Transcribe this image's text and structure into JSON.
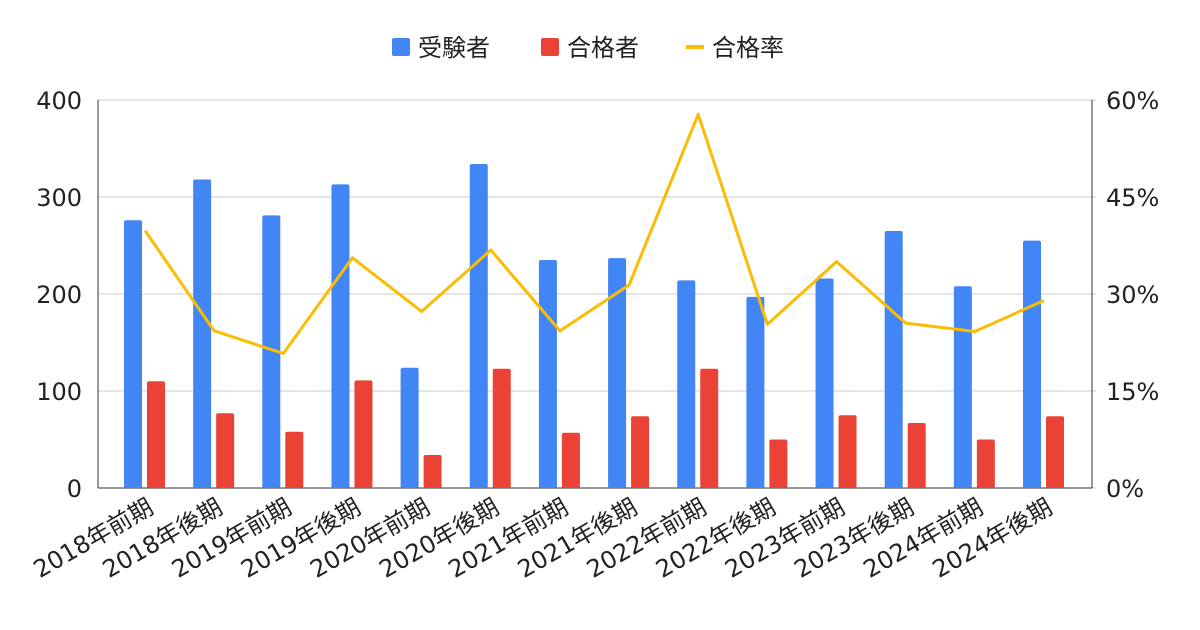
{
  "chart_data": {
    "type": "bar_line",
    "categories": [
      "2018年前期",
      "2018年後期",
      "2019年前期",
      "2019年後期",
      "2020年前期",
      "2020年後期",
      "2021年前期",
      "2021年後期",
      "2022年前期",
      "2022年後期",
      "2023年前期",
      "2023年後期",
      "2024年前期",
      "2024年後期"
    ],
    "series": [
      {
        "name": "受験者",
        "type": "bar",
        "color": "#4285f4",
        "values": [
          276,
          318,
          281,
          313,
          124,
          334,
          235,
          237,
          214,
          197,
          216,
          265,
          208,
          255
        ]
      },
      {
        "name": "合格者",
        "type": "bar",
        "color": "#ea4335",
        "values": [
          110,
          77,
          58,
          111,
          34,
          123,
          57,
          74,
          123,
          50,
          75,
          67,
          50,
          74
        ]
      },
      {
        "name": "合格率",
        "type": "line",
        "axis": "y2",
        "color": "#fbbc04",
        "values": [
          39.8,
          24.3,
          20.8,
          35.6,
          27.3,
          36.8,
          24.3,
          31.4,
          57.8,
          25.3,
          35.0,
          25.5,
          24.2,
          29.0
        ]
      }
    ],
    "ylim": [
      0,
      400
    ],
    "yticks": [
      0,
      100,
      200,
      300,
      400
    ],
    "y2lim": [
      0,
      60
    ],
    "y2ticks": [
      {
        "value": 0,
        "label": "0%"
      },
      {
        "value": 15,
        "label": "15%"
      },
      {
        "value": 30,
        "label": "30%"
      },
      {
        "value": 45,
        "label": "45%"
      },
      {
        "value": 60,
        "label": "60%"
      }
    ],
    "grid": true,
    "legend": "top"
  }
}
